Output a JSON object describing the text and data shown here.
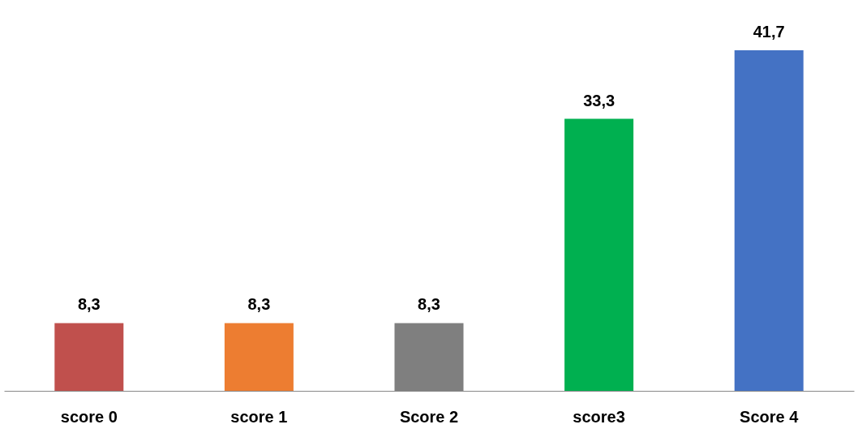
{
  "chart_data": {
    "type": "bar",
    "categories": [
      "score 0",
      "score 1",
      "Score 2",
      "score3",
      "Score 4"
    ],
    "values": [
      8.3,
      8.3,
      8.3,
      33.3,
      41.7
    ],
    "colors": [
      "#c0504d",
      "#ed7d31",
      "#7f7f7f",
      "#00b050",
      "#4472c4"
    ],
    "value_labels": [
      "8,3",
      "8,3",
      "8,3",
      "33,3",
      "41,7"
    ],
    "grid": false
  }
}
